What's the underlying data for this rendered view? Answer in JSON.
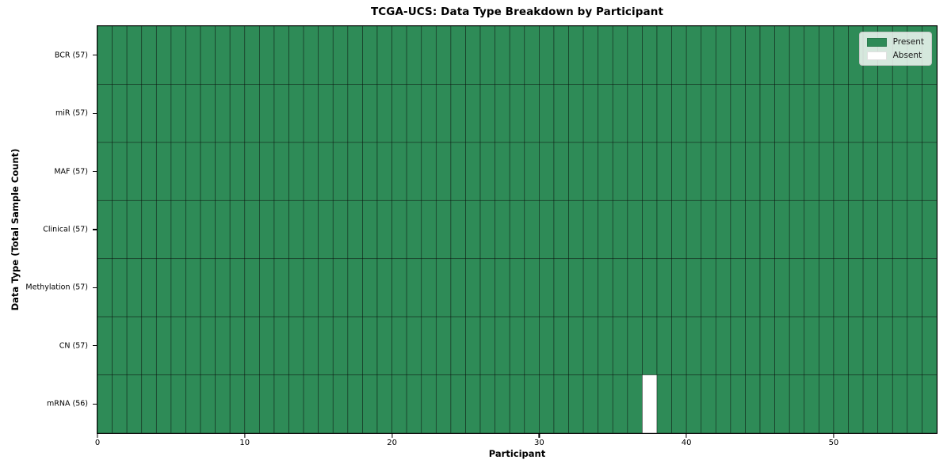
{
  "chart_data": {
    "type": "heatmap",
    "title": "TCGA-UCS: Data Type Breakdown by Participant",
    "xlabel": "Participant",
    "ylabel": "Data Type (Total Sample Count)",
    "n_participants": 57,
    "x_ticks": [
      0,
      10,
      20,
      30,
      40,
      50
    ],
    "x_range": [
      0,
      57
    ],
    "rows": [
      {
        "label": "BCR (57)",
        "data_type": "BCR",
        "total_samples": 57,
        "absent_participant_indices": []
      },
      {
        "label": "miR (57)",
        "data_type": "miR",
        "total_samples": 57,
        "absent_participant_indices": []
      },
      {
        "label": "MAF (57)",
        "data_type": "MAF",
        "total_samples": 57,
        "absent_participant_indices": []
      },
      {
        "label": "Clinical (57)",
        "data_type": "Clinical",
        "total_samples": 57,
        "absent_participant_indices": []
      },
      {
        "label": "Methylation (57)",
        "data_type": "Methylation",
        "total_samples": 57,
        "absent_participant_indices": []
      },
      {
        "label": "CN (57)",
        "data_type": "CN",
        "total_samples": 57,
        "absent_participant_indices": []
      },
      {
        "label": "mRNA (56)",
        "data_type": "mRNA",
        "total_samples": 56,
        "absent_participant_indices": [
          37
        ]
      }
    ],
    "legend": [
      {
        "label": "Present",
        "color": "#2e8b57"
      },
      {
        "label": "Absent",
        "color": "#ffffff"
      }
    ],
    "colors": {
      "present": "#2e8b57",
      "absent": "#ffffff",
      "cell_border": "#000000",
      "frame": "#000000"
    },
    "legend_position": "upper right",
    "grid": true
  }
}
